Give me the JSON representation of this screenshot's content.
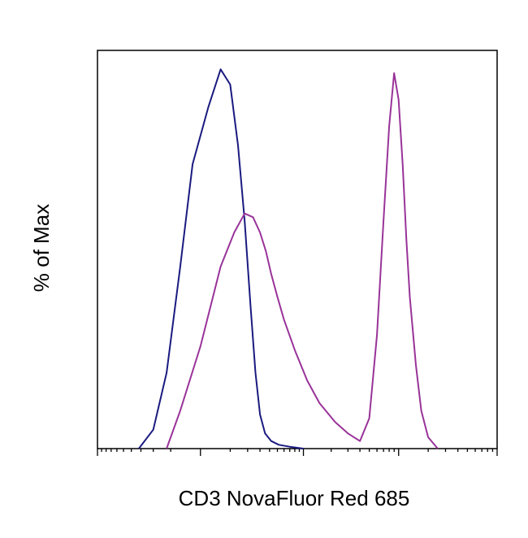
{
  "chart_data": {
    "type": "line",
    "title": "",
    "xlabel": "CD3 NovaFluor Red 685",
    "ylabel": "% of Max",
    "x_scale": "log",
    "xlim": [
      -1000,
      100000
    ],
    "ylim": [
      0,
      105
    ],
    "legend": "none",
    "grid": false,
    "series": [
      {
        "color": "#1a1a80",
        "x": [
          -320,
          -200,
          -120,
          -60,
          -20,
          20,
          60,
          100,
          140,
          180,
          220,
          260,
          300,
          350,
          420,
          520,
          700,
          1000
        ],
        "y": [
          0,
          5,
          20,
          48,
          75,
          90,
          100,
          96,
          80,
          60,
          38,
          20,
          9,
          4,
          2,
          1,
          0.5,
          0
        ]
      },
      {
        "color": "#993399",
        "x": [
          -120,
          -60,
          0,
          60,
          120,
          180,
          240,
          300,
          360,
          420,
          500,
          600,
          800,
          1100,
          1500,
          2200,
          3000,
          4000,
          5000,
          6000,
          7000,
          8000,
          9000,
          10000,
          11000,
          12000,
          13000,
          15000,
          17000,
          20000,
          25000
        ],
        "y": [
          0,
          10,
          27,
          48,
          57,
          62,
          61,
          57,
          52,
          46,
          40,
          34,
          26,
          18,
          12,
          7,
          4,
          2,
          8,
          30,
          60,
          85,
          99,
          92,
          75,
          55,
          40,
          22,
          10,
          3,
          0
        ]
      }
    ]
  }
}
